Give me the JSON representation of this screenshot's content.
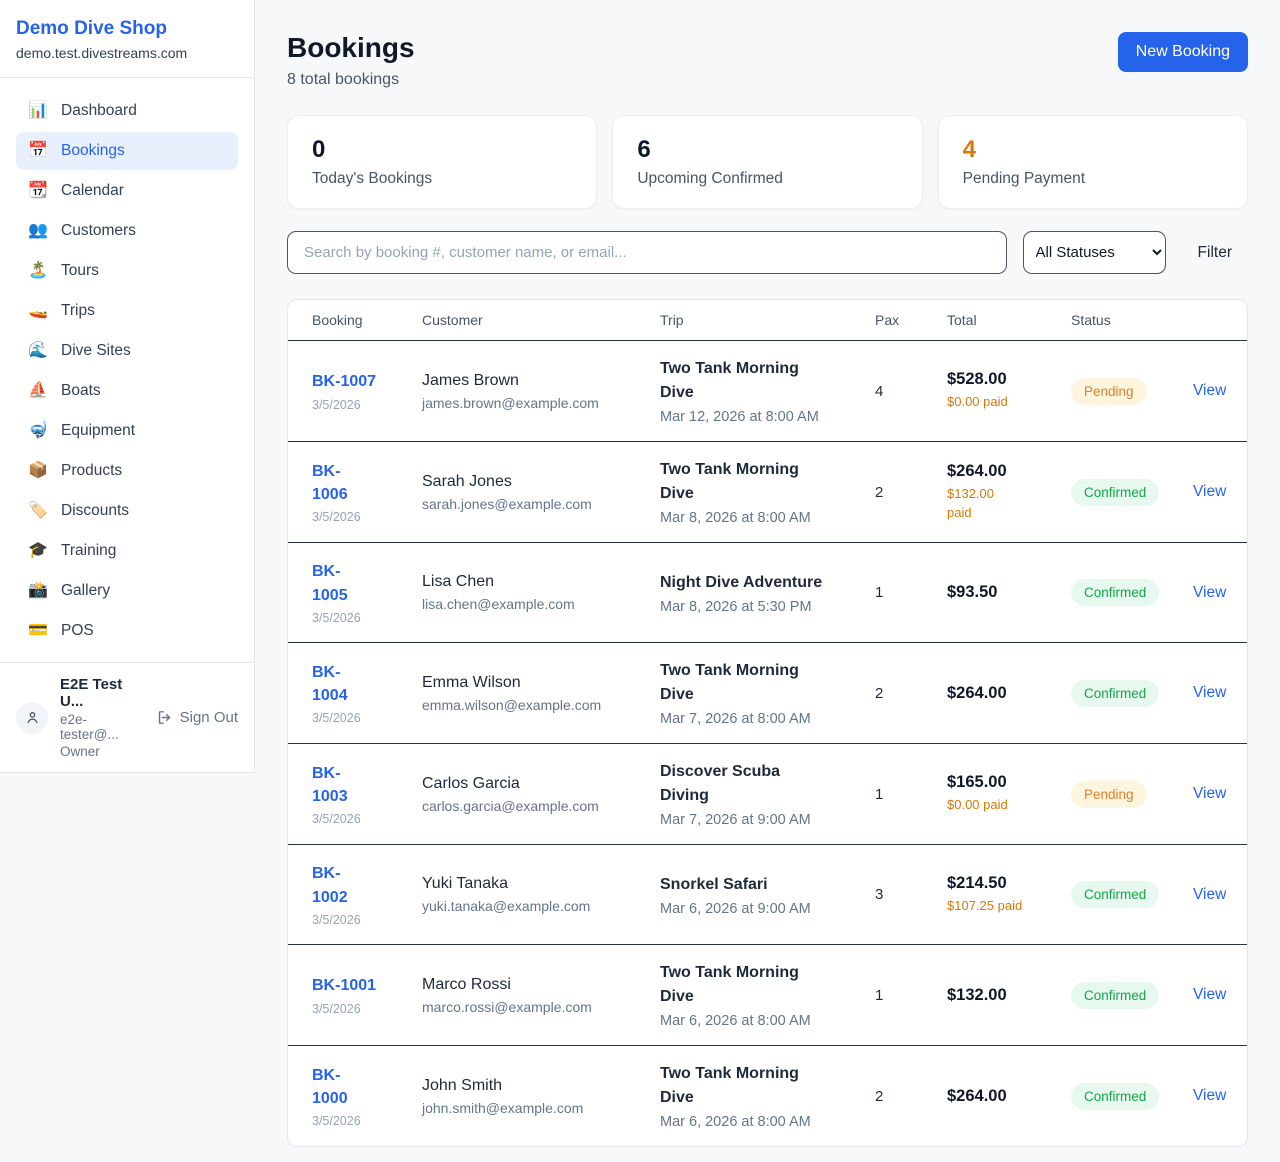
{
  "sidebar": {
    "brand": "Demo Dive Shop",
    "domain": "demo.test.divestreams.com",
    "items": [
      {
        "icon": "📊",
        "icon_name": "dashboard-chart-icon",
        "label": "Dashboard",
        "active": false
      },
      {
        "icon": "📅",
        "icon_name": "bookings-calendar-icon",
        "label": "Bookings",
        "active": true
      },
      {
        "icon": "📆",
        "icon_name": "calendar-icon",
        "label": "Calendar",
        "active": false
      },
      {
        "icon": "👥",
        "icon_name": "customers-people-icon",
        "label": "Customers",
        "active": false
      },
      {
        "icon": "🏝️",
        "icon_name": "tours-island-icon",
        "label": "Tours",
        "active": false
      },
      {
        "icon": "🚤",
        "icon_name": "trips-speedboat-icon",
        "label": "Trips",
        "active": false
      },
      {
        "icon": "🌊",
        "icon_name": "dive-sites-wave-icon",
        "label": "Dive Sites",
        "active": false
      },
      {
        "icon": "⛵",
        "icon_name": "boats-sailboat-icon",
        "label": "Boats",
        "active": false
      },
      {
        "icon": "🤿",
        "icon_name": "equipment-dive-mask-icon",
        "label": "Equipment",
        "active": false
      },
      {
        "icon": "📦",
        "icon_name": "products-package-icon",
        "label": "Products",
        "active": false
      },
      {
        "icon": "🏷️",
        "icon_name": "discounts-tag-icon",
        "label": "Discounts",
        "active": false
      },
      {
        "icon": "🎓",
        "icon_name": "training-grad-cap-icon",
        "label": "Training",
        "active": false
      },
      {
        "icon": "📸",
        "icon_name": "gallery-camera-icon",
        "label": "Gallery",
        "active": false
      },
      {
        "icon": "💳",
        "icon_name": "pos-credit-card-icon",
        "label": "POS",
        "active": false
      }
    ],
    "user": {
      "name": "E2E Test U...",
      "email": "e2e-tester@...",
      "role": "Owner",
      "sign_out": "Sign Out"
    }
  },
  "header": {
    "title": "Bookings",
    "subtitle": "8 total bookings",
    "new_booking": "New Booking"
  },
  "stats": [
    {
      "value": "0",
      "label": "Today's Bookings",
      "orange": false
    },
    {
      "value": "6",
      "label": "Upcoming Confirmed",
      "orange": false
    },
    {
      "value": "4",
      "label": "Pending Payment",
      "orange": true
    }
  ],
  "filters": {
    "search_placeholder": "Search by booking #, customer name, or email...",
    "status_selected": "All Statuses",
    "filter_label": "Filter"
  },
  "table": {
    "columns": [
      "Booking",
      "Customer",
      "Trip",
      "Pax",
      "Total",
      "Status"
    ],
    "view_label": "View",
    "rows": [
      {
        "id_lines": [
          "BK-1007"
        ],
        "date": "3/5/2026",
        "customer": "James Brown",
        "email": "james.brown@example.com",
        "trip_lines": [
          "Two Tank Morning",
          "Dive"
        ],
        "trip_date": "Mar 12, 2026 at 8:00 AM",
        "pax": "4",
        "total": "$528.00",
        "paid_lines": [
          "$0.00 paid"
        ],
        "status": "Pending"
      },
      {
        "id_lines": [
          "BK-",
          "1006"
        ],
        "date": "3/5/2026",
        "customer": "Sarah Jones",
        "email": "sarah.jones@example.com",
        "trip_lines": [
          "Two Tank Morning",
          "Dive"
        ],
        "trip_date": "Mar 8, 2026 at 8:00 AM",
        "pax": "2",
        "total": "$264.00",
        "paid_lines": [
          "$132.00",
          "paid"
        ],
        "status": "Confirmed"
      },
      {
        "id_lines": [
          "BK-",
          "1005"
        ],
        "date": "3/5/2026",
        "customer": "Lisa Chen",
        "email": "lisa.chen@example.com",
        "trip_lines": [
          "Night Dive Adventure"
        ],
        "trip_date": "Mar 8, 2026 at 5:30 PM",
        "pax": "1",
        "total": "$93.50",
        "paid_lines": null,
        "status": "Confirmed"
      },
      {
        "id_lines": [
          "BK-",
          "1004"
        ],
        "date": "3/5/2026",
        "customer": "Emma Wilson",
        "email": "emma.wilson@example.com",
        "trip_lines": [
          "Two Tank Morning",
          "Dive"
        ],
        "trip_date": "Mar 7, 2026 at 8:00 AM",
        "pax": "2",
        "total": "$264.00",
        "paid_lines": null,
        "status": "Confirmed"
      },
      {
        "id_lines": [
          "BK-",
          "1003"
        ],
        "date": "3/5/2026",
        "customer": "Carlos Garcia",
        "email": "carlos.garcia@example.com",
        "trip_lines": [
          "Discover Scuba",
          "Diving"
        ],
        "trip_date": "Mar 7, 2026 at 9:00 AM",
        "pax": "1",
        "total": "$165.00",
        "paid_lines": [
          "$0.00 paid"
        ],
        "status": "Pending"
      },
      {
        "id_lines": [
          "BK-",
          "1002"
        ],
        "date": "3/5/2026",
        "customer": "Yuki Tanaka",
        "email": "yuki.tanaka@example.com",
        "trip_lines": [
          "Snorkel Safari"
        ],
        "trip_date": "Mar 6, 2026 at 9:00 AM",
        "pax": "3",
        "total": "$214.50",
        "paid_lines": [
          "$107.25 paid"
        ],
        "status": "Confirmed"
      },
      {
        "id_lines": [
          "BK-1001"
        ],
        "date": "3/5/2026",
        "customer": "Marco Rossi",
        "email": "marco.rossi@example.com",
        "trip_lines": [
          "Two Tank Morning",
          "Dive"
        ],
        "trip_date": "Mar 6, 2026 at 8:00 AM",
        "pax": "1",
        "total": "$132.00",
        "paid_lines": null,
        "status": "Confirmed"
      },
      {
        "id_lines": [
          "BK-",
          "1000"
        ],
        "date": "3/5/2026",
        "customer": "John Smith",
        "email": "john.smith@example.com",
        "trip_lines": [
          "Two Tank Morning",
          "Dive"
        ],
        "trip_date": "Mar 6, 2026 at 8:00 AM",
        "pax": "2",
        "total": "$264.00",
        "paid_lines": null,
        "status": "Confirmed"
      }
    ]
  },
  "colors": {
    "accent_blue": "#2563eb",
    "pending_bg": "#fdf5dd",
    "pending_text": "#d9822b",
    "confirmed_bg": "#e7f8ee",
    "confirmed_text": "#17a34a",
    "paid_orange": "#d97706",
    "stat_orange": "#d97706"
  }
}
